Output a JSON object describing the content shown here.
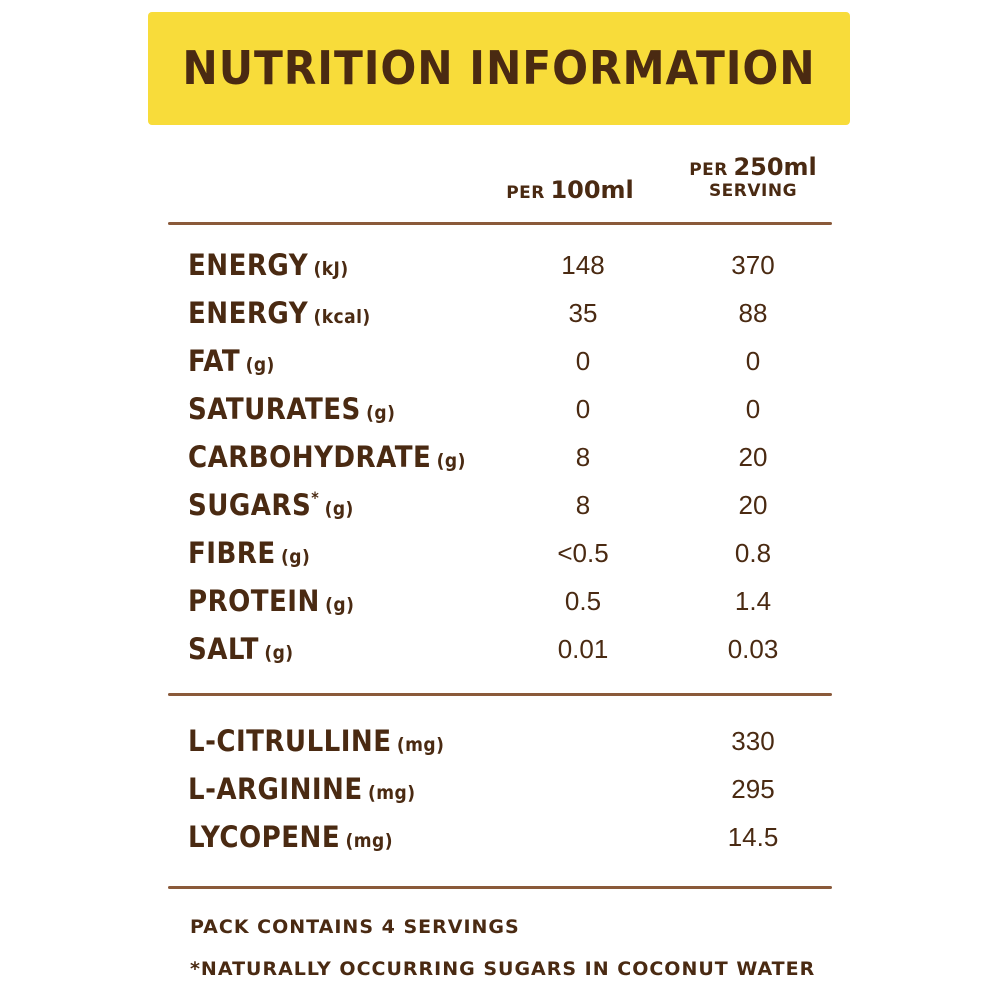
{
  "header": {
    "title": "NUTRITION INFORMATION"
  },
  "columns": [
    {
      "prefix": "PER",
      "amount": "100ml"
    },
    {
      "prefix": "PER",
      "amount": "250ml",
      "suffix": "SERVING"
    }
  ],
  "rows": [
    {
      "name": "ENERGY",
      "unit": "(kJ)",
      "per100": "148",
      "perServing": "370"
    },
    {
      "name": "ENERGY",
      "unit": "(kcal)",
      "per100": "35",
      "perServing": "88"
    },
    {
      "name": "FAT",
      "unit": "(g)",
      "per100": "0",
      "perServing": "0"
    },
    {
      "name": "SATURATES",
      "unit": "(g)",
      "per100": "0",
      "perServing": "0"
    },
    {
      "name": "CARBOHYDRATE",
      "unit": "(g)",
      "per100": "8",
      "perServing": "20"
    },
    {
      "name": "SUGARS",
      "note": "*",
      "unit": "(g)",
      "per100": "8",
      "perServing": "20"
    },
    {
      "name": "FIBRE",
      "unit": "(g)",
      "per100": "<0.5",
      "perServing": "0.8"
    },
    {
      "name": "PROTEIN",
      "unit": "(g)",
      "per100": "0.5",
      "perServing": "1.4"
    },
    {
      "name": "SALT",
      "unit": "(g)",
      "per100": "0.01",
      "perServing": "0.03"
    }
  ],
  "extras": [
    {
      "name": "L-CITRULLINE",
      "unit": "(mg)",
      "perServing": "330"
    },
    {
      "name": "L-ARGININE",
      "unit": "(mg)",
      "perServing": "295"
    },
    {
      "name": "LYCOPENE",
      "unit": "(mg)",
      "perServing": "14.5"
    }
  ],
  "footer": {
    "servings": "PACK CONTAINS 4 SERVINGS",
    "footnote": "*NATURALLY OCCURRING SUGARS IN COCONUT WATER"
  }
}
